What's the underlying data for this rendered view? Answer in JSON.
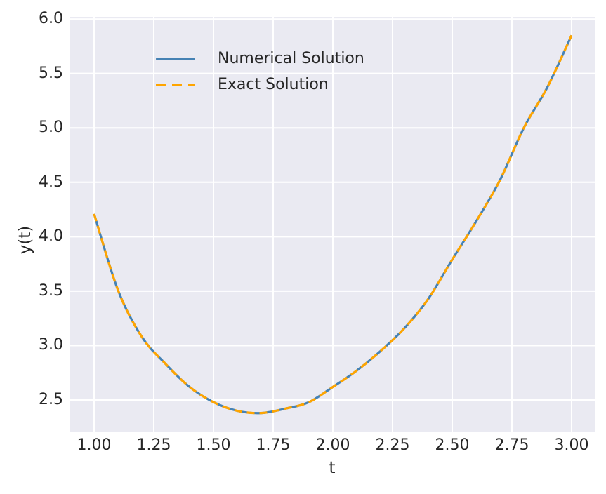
{
  "figure": {
    "background": "#ffffff",
    "axes_background": "#eaeaf2",
    "grid_color": "#ffffff",
    "text_color": "#262626"
  },
  "chart_data": {
    "type": "line",
    "title": "",
    "xlabel": "t",
    "ylabel": "y(t)",
    "grid": true,
    "legend_position": "upper left",
    "legend_frame": false,
    "xlim": [
      0.9,
      3.1
    ],
    "ylim": [
      2.21,
      6.02
    ],
    "x_tick_labels": [
      "1.00",
      "1.25",
      "1.50",
      "1.75",
      "2.00",
      "2.25",
      "2.50",
      "2.75",
      "3.00"
    ],
    "x_tick_values": [
      1.0,
      1.25,
      1.5,
      1.75,
      2.0,
      2.25,
      2.5,
      2.75,
      3.0
    ],
    "y_tick_labels": [
      "2.5",
      "3.0",
      "3.5",
      "4.0",
      "4.5",
      "5.0",
      "5.5",
      "6.0"
    ],
    "y_tick_values": [
      2.5,
      3.0,
      3.5,
      4.0,
      4.5,
      5.0,
      5.5,
      6.0
    ],
    "x": [
      1.0,
      1.1,
      1.2,
      1.3,
      1.4,
      1.5,
      1.6,
      1.7,
      1.8,
      1.9,
      2.0,
      2.1,
      2.2,
      2.3,
      2.4,
      2.5,
      2.6,
      2.7,
      2.8,
      2.9,
      3.0
    ],
    "series": [
      {
        "name": "Numerical Solution",
        "color": "#4682B4",
        "style": "solid",
        "linewidth": 3.2,
        "values": [
          4.21,
          3.51,
          3.08,
          2.83,
          2.62,
          2.48,
          2.4,
          2.38,
          2.42,
          2.48,
          2.62,
          2.77,
          2.95,
          3.16,
          3.43,
          3.79,
          4.14,
          4.52,
          5.0,
          5.38,
          5.85
        ]
      },
      {
        "name": "Exact Solution",
        "color": "#FFA500",
        "style": "dashed",
        "linewidth": 3.2,
        "dash": [
          11,
          7
        ],
        "values": [
          4.21,
          3.51,
          3.08,
          2.83,
          2.62,
          2.48,
          2.4,
          2.38,
          2.42,
          2.48,
          2.62,
          2.77,
          2.95,
          3.16,
          3.43,
          3.79,
          4.14,
          4.52,
          5.0,
          5.38,
          5.85
        ]
      }
    ]
  }
}
